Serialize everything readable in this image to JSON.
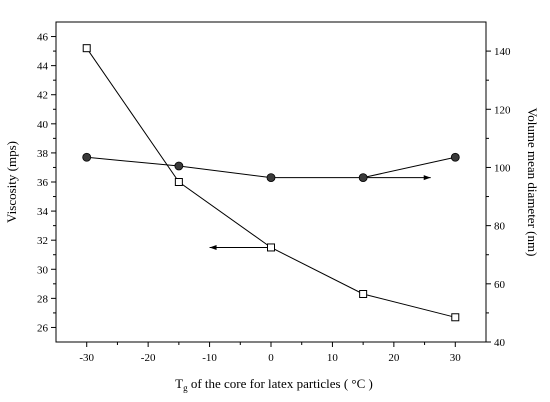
{
  "chart_data": {
    "type": "line",
    "xlabel_main": "T",
    "xlabel_sub": "g",
    "xlabel_rest": " of the core for latex particles ( °C )",
    "ylabel_left": "Viscosity (mps)",
    "ylabel_right": "Volume mean diameter (nm)",
    "xlim": [
      -35,
      35
    ],
    "ylim_left": [
      25,
      47
    ],
    "ylim_right": [
      40,
      150
    ],
    "x_ticks": [
      -30,
      -20,
      -10,
      0,
      10,
      20,
      30
    ],
    "y_left_ticks": [
      26,
      28,
      30,
      32,
      34,
      36,
      38,
      40,
      42,
      44,
      46
    ],
    "y_right_ticks": [
      40,
      60,
      80,
      100,
      120,
      140
    ],
    "grid": false,
    "legend": "none",
    "series": [
      {
        "axis": "left",
        "marker": "open-square",
        "x": [
          -30,
          -15,
          0,
          15,
          30
        ],
        "values": [
          45.2,
          36.0,
          31.5,
          28.3,
          26.7
        ]
      },
      {
        "axis": "right",
        "marker": "filled-circle",
        "x": [
          -30,
          -15,
          0,
          15,
          30
        ],
        "values": [
          103.5,
          100.5,
          96.5,
          96.5,
          103.5
        ]
      }
    ],
    "annotations": [
      {
        "type": "arrow",
        "points_to": "left",
        "from": [
          0,
          31.5
        ],
        "to": [
          -10,
          31.5
        ],
        "axis": "left"
      },
      {
        "type": "arrow",
        "points_to": "right",
        "from": [
          15,
          96.5
        ],
        "to": [
          26,
          96.5
        ],
        "axis": "right"
      }
    ],
    "colors": {
      "line": "#000000",
      "marker_fill_open": "#ffffff",
      "marker_fill_solid": "#3a3a3a"
    }
  }
}
